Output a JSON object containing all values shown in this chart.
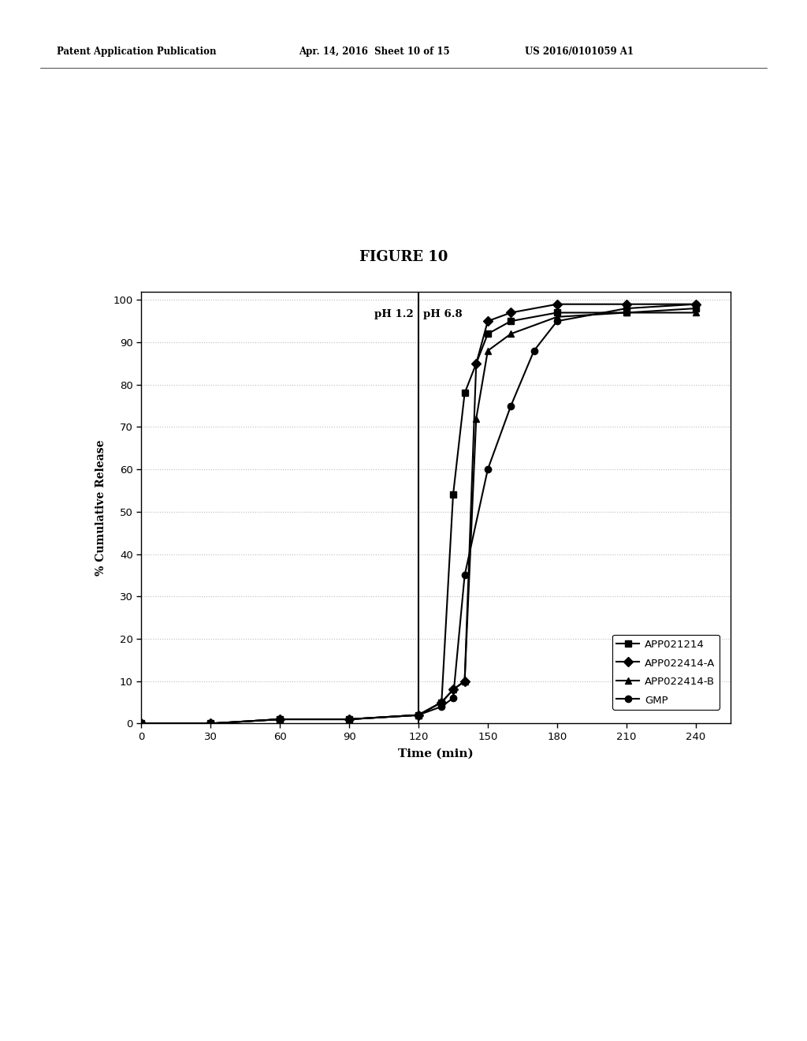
{
  "title": "FIGURE 10",
  "xlabel": "Time (min)",
  "ylabel": "% Cumulative Release",
  "header_left": "Patent Application Publication",
  "header_center": "Apr. 14, 2016  Sheet 10 of 15",
  "header_right": "US 2016/0101059 A1",
  "xlim": [
    0,
    255
  ],
  "ylim": [
    0,
    102
  ],
  "xticks": [
    0,
    30,
    60,
    90,
    120,
    150,
    180,
    210,
    240
  ],
  "yticks": [
    0,
    10,
    20,
    30,
    40,
    50,
    60,
    70,
    80,
    90,
    100
  ],
  "ph_line_x": 120,
  "ph1_label": "pH 1.2",
  "ph2_label": "pH 6.8",
  "series": [
    {
      "label": "APP021214",
      "marker": "s",
      "x": [
        0,
        30,
        60,
        90,
        120,
        130,
        135,
        140,
        150,
        160,
        180,
        210,
        240
      ],
      "y": [
        0,
        0,
        1,
        1,
        2,
        5,
        54,
        78,
        92,
        95,
        97,
        97,
        98
      ]
    },
    {
      "label": "APP022414-A",
      "marker": "D",
      "x": [
        0,
        30,
        60,
        90,
        120,
        130,
        135,
        140,
        145,
        150,
        160,
        180,
        210,
        240
      ],
      "y": [
        0,
        0,
        1,
        1,
        2,
        5,
        8,
        10,
        85,
        95,
        97,
        99,
        99,
        99
      ]
    },
    {
      "label": "APP022414-B",
      "marker": "^",
      "x": [
        0,
        30,
        60,
        90,
        120,
        130,
        135,
        140,
        145,
        150,
        160,
        180,
        210,
        240
      ],
      "y": [
        0,
        0,
        1,
        1,
        2,
        5,
        8,
        10,
        72,
        88,
        92,
        96,
        97,
        97
      ]
    },
    {
      "label": "GMP",
      "marker": "o",
      "x": [
        0,
        30,
        60,
        90,
        120,
        130,
        135,
        140,
        150,
        160,
        170,
        180,
        210,
        240
      ],
      "y": [
        0,
        0,
        1,
        1,
        2,
        4,
        6,
        35,
        60,
        75,
        88,
        95,
        98,
        99
      ]
    }
  ],
  "line_color": "#000000",
  "background_color": "#ffffff",
  "grid_color": "#bbbbbb"
}
